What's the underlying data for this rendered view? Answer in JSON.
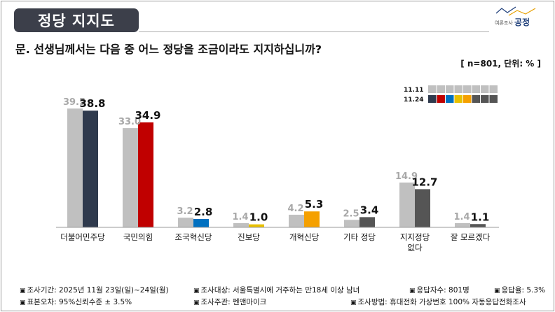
{
  "header": {
    "title": "정당 지지도",
    "logo_sub": "여론조사",
    "logo_main": "공정"
  },
  "question": "문. 선생님께서는 다음 중 어느 정당을 조금이라도 지지하십니까?",
  "unit_note": "[ n=801, 단위: % ]",
  "legend": {
    "prev_label": "11.11",
    "curr_label": "11.24"
  },
  "colors": {
    "prev": "#c0c0c0",
    "prev_label": "#a8a8a8",
    "parties": [
      "#2f3a4d",
      "#c00000",
      "#0070c0",
      "#e8c000",
      "#f5a000",
      "#555555",
      "#555555",
      "#555555"
    ]
  },
  "footer": {
    "row1": [
      "조사기간: 2025년 11월 23일(일)~24일(월)",
      "조사대상: 서울특별시에 거주하는 만18세 이상 남녀",
      "응답자수: 801명",
      "응답율: 5.3%"
    ],
    "row2": [
      "표본오차: 95%신뢰수준 ± 3.5%",
      "조사주관: 펜앤마이크",
      "조사방법: 휴대전화 가상번호 100% 자동응답전화조사"
    ]
  },
  "chart_data": {
    "type": "bar",
    "categories": [
      "더불어민주당",
      "국민의힘",
      "조국혁신당",
      "진보당",
      "개혁신당",
      "기타 정당",
      "지지정당\n없다",
      "잘 모르겠다"
    ],
    "series": [
      {
        "name": "11.11",
        "values": [
          39.5,
          33.0,
          3.2,
          1.4,
          4.2,
          2.5,
          14.9,
          1.4
        ]
      },
      {
        "name": "11.24",
        "values": [
          38.8,
          34.9,
          2.8,
          1.0,
          5.3,
          3.4,
          12.7,
          1.1
        ]
      }
    ],
    "ylim": [
      0,
      40
    ],
    "legend_position": "top-right"
  }
}
